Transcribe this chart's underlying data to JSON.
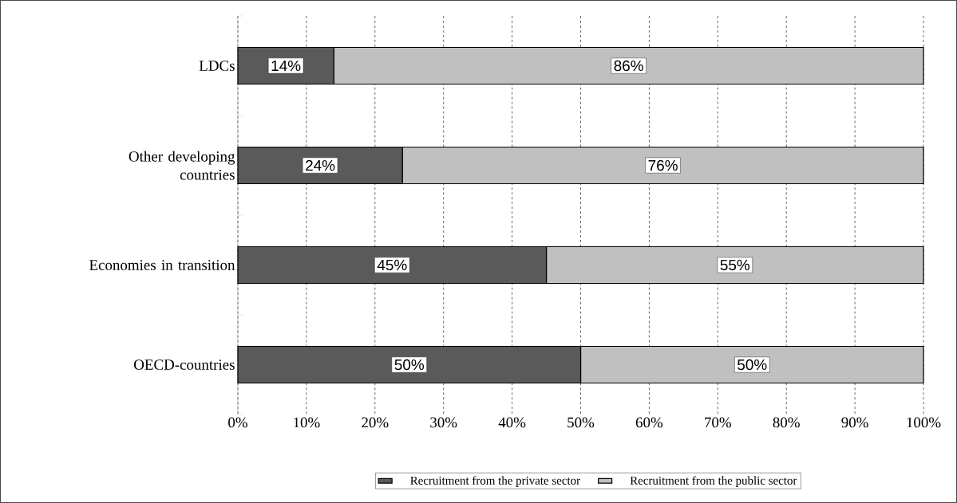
{
  "chart_data": {
    "type": "bar",
    "orientation": "horizontal",
    "stacked": true,
    "categories": [
      "LDCs",
      "Other developing countries",
      "Economies in transition",
      "OECD-countries"
    ],
    "series": [
      {
        "name": "Recruitment from the private sector",
        "color": "#5a5a5a",
        "values": [
          14,
          24,
          45,
          50
        ],
        "value_labels": [
          "14%",
          "24%",
          "45%",
          "50%"
        ]
      },
      {
        "name": "Recruitment from the public sector",
        "color": "#c0c0c0",
        "values": [
          86,
          76,
          55,
          50
        ],
        "value_labels": [
          "86%",
          "76%",
          "55%",
          "50%"
        ]
      }
    ],
    "xlim": [
      0,
      100
    ],
    "xticks": [
      {
        "value": 0,
        "label": "0%"
      },
      {
        "value": 10,
        "label": "10%"
      },
      {
        "value": 20,
        "label": "20%"
      },
      {
        "value": 30,
        "label": "30%"
      },
      {
        "value": 40,
        "label": "40%"
      },
      {
        "value": 50,
        "label": "50%"
      },
      {
        "value": 60,
        "label": "60%"
      },
      {
        "value": 70,
        "label": "70%"
      },
      {
        "value": 80,
        "label": "80%"
      },
      {
        "value": 90,
        "label": "90%"
      },
      {
        "value": 100,
        "label": "100%"
      }
    ],
    "grid": "x",
    "legend": "bottom"
  }
}
